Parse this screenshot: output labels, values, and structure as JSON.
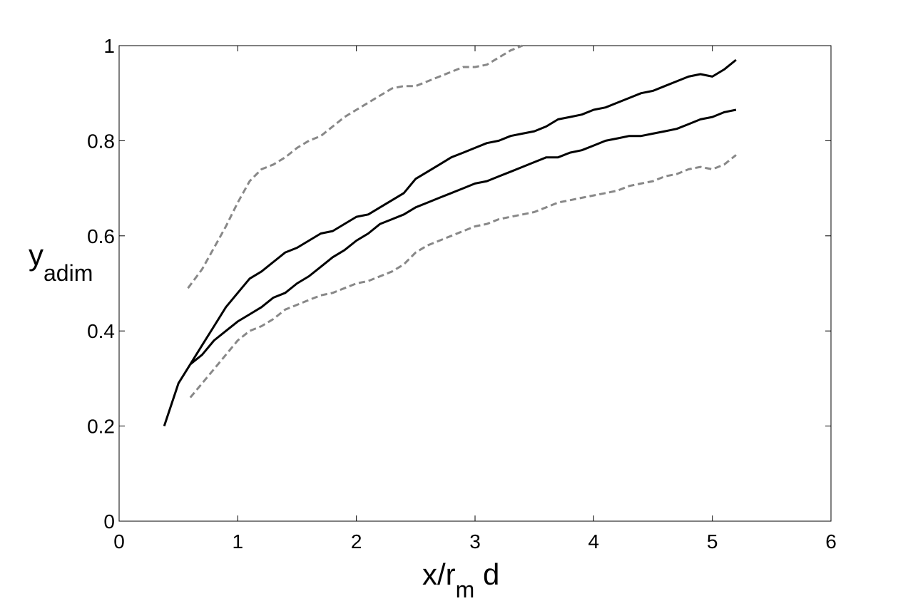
{
  "chart_data": {
    "type": "line",
    "xlabel": {
      "main": "x/r",
      "sub": "m",
      "tail": " d"
    },
    "ylabel": {
      "main": "y",
      "sub": "adim"
    },
    "xlim": [
      0,
      6
    ],
    "ylim": [
      0,
      1
    ],
    "xticks": [
      0,
      1,
      2,
      3,
      4,
      5,
      6
    ],
    "xtick_labels": [
      "0",
      "1",
      "2",
      "3",
      "4",
      "5",
      "6"
    ],
    "yticks": [
      0,
      0.2,
      0.4,
      0.6,
      0.8,
      1
    ],
    "ytick_labels": [
      "0",
      "0.2",
      "0.4",
      "0.6",
      "0.8",
      "1"
    ],
    "grid": false,
    "series": [
      {
        "style": "solid",
        "color": "#000000",
        "x": [
          0.38,
          0.5,
          0.6,
          0.7,
          0.8,
          0.9,
          1.0,
          1.1,
          1.2,
          1.3,
          1.4,
          1.5,
          1.6,
          1.7,
          1.8,
          1.9,
          2.0,
          2.1,
          2.2,
          2.3,
          2.4,
          2.5,
          2.6,
          2.7,
          2.8,
          2.9,
          3.0,
          3.1,
          3.2,
          3.3,
          3.4,
          3.5,
          3.6,
          3.7,
          3.8,
          3.9,
          4.0,
          4.1,
          4.2,
          4.3,
          4.4,
          4.5,
          4.6,
          4.7,
          4.8,
          4.9,
          5.0,
          5.1,
          5.2
        ],
        "y": [
          0.2,
          0.29,
          0.33,
          0.37,
          0.41,
          0.45,
          0.48,
          0.51,
          0.525,
          0.545,
          0.565,
          0.575,
          0.59,
          0.605,
          0.61,
          0.625,
          0.64,
          0.645,
          0.66,
          0.675,
          0.69,
          0.72,
          0.735,
          0.75,
          0.765,
          0.775,
          0.785,
          0.795,
          0.8,
          0.81,
          0.815,
          0.82,
          0.83,
          0.845,
          0.85,
          0.855,
          0.865,
          0.87,
          0.88,
          0.89,
          0.9,
          0.905,
          0.915,
          0.925,
          0.935,
          0.94,
          0.935,
          0.95,
          0.97
        ]
      },
      {
        "style": "solid",
        "color": "#000000",
        "x": [
          0.6,
          0.7,
          0.8,
          0.9,
          1.0,
          1.1,
          1.2,
          1.3,
          1.4,
          1.5,
          1.6,
          1.7,
          1.8,
          1.9,
          2.0,
          2.1,
          2.2,
          2.3,
          2.4,
          2.5,
          2.6,
          2.7,
          2.8,
          2.9,
          3.0,
          3.1,
          3.2,
          3.3,
          3.4,
          3.5,
          3.6,
          3.7,
          3.8,
          3.9,
          4.0,
          4.1,
          4.2,
          4.3,
          4.4,
          4.5,
          4.6,
          4.7,
          4.8,
          4.9,
          5.0,
          5.1,
          5.2
        ],
        "y": [
          0.33,
          0.35,
          0.38,
          0.4,
          0.42,
          0.435,
          0.45,
          0.47,
          0.48,
          0.5,
          0.515,
          0.535,
          0.555,
          0.57,
          0.59,
          0.605,
          0.625,
          0.635,
          0.645,
          0.66,
          0.67,
          0.68,
          0.69,
          0.7,
          0.71,
          0.715,
          0.725,
          0.735,
          0.745,
          0.755,
          0.765,
          0.765,
          0.775,
          0.78,
          0.79,
          0.8,
          0.805,
          0.81,
          0.81,
          0.815,
          0.82,
          0.825,
          0.835,
          0.845,
          0.85,
          0.86,
          0.865
        ]
      },
      {
        "style": "dashed",
        "color": "#888888",
        "x": [
          0.58,
          0.7,
          0.8,
          0.9,
          1.0,
          1.1,
          1.2,
          1.3,
          1.4,
          1.5,
          1.6,
          1.7,
          1.8,
          1.9,
          2.0,
          2.1,
          2.2,
          2.3,
          2.4,
          2.5,
          2.6,
          2.7,
          2.8,
          2.9,
          3.0,
          3.1,
          3.2,
          3.3,
          3.4
        ],
        "y": [
          0.49,
          0.53,
          0.575,
          0.62,
          0.67,
          0.715,
          0.74,
          0.75,
          0.765,
          0.785,
          0.8,
          0.81,
          0.83,
          0.85,
          0.865,
          0.88,
          0.895,
          0.91,
          0.915,
          0.915,
          0.925,
          0.935,
          0.945,
          0.955,
          0.955,
          0.96,
          0.975,
          0.99,
          1.0
        ]
      },
      {
        "style": "dashed",
        "color": "#888888",
        "x": [
          0.6,
          0.7,
          0.8,
          0.9,
          1.0,
          1.1,
          1.2,
          1.3,
          1.4,
          1.5,
          1.6,
          1.7,
          1.8,
          1.9,
          2.0,
          2.1,
          2.2,
          2.3,
          2.4,
          2.5,
          2.6,
          2.7,
          2.8,
          2.9,
          3.0,
          3.1,
          3.2,
          3.3,
          3.4,
          3.5,
          3.6,
          3.7,
          3.8,
          3.9,
          4.0,
          4.1,
          4.2,
          4.3,
          4.4,
          4.5,
          4.6,
          4.7,
          4.8,
          4.9,
          5.0,
          5.1,
          5.2
        ],
        "y": [
          0.26,
          0.29,
          0.32,
          0.35,
          0.38,
          0.4,
          0.41,
          0.425,
          0.445,
          0.455,
          0.465,
          0.475,
          0.48,
          0.49,
          0.5,
          0.505,
          0.515,
          0.525,
          0.54,
          0.565,
          0.58,
          0.59,
          0.6,
          0.61,
          0.62,
          0.625,
          0.635,
          0.64,
          0.645,
          0.65,
          0.66,
          0.67,
          0.675,
          0.68,
          0.685,
          0.69,
          0.695,
          0.705,
          0.71,
          0.715,
          0.725,
          0.73,
          0.74,
          0.745,
          0.74,
          0.75,
          0.77
        ]
      }
    ]
  }
}
